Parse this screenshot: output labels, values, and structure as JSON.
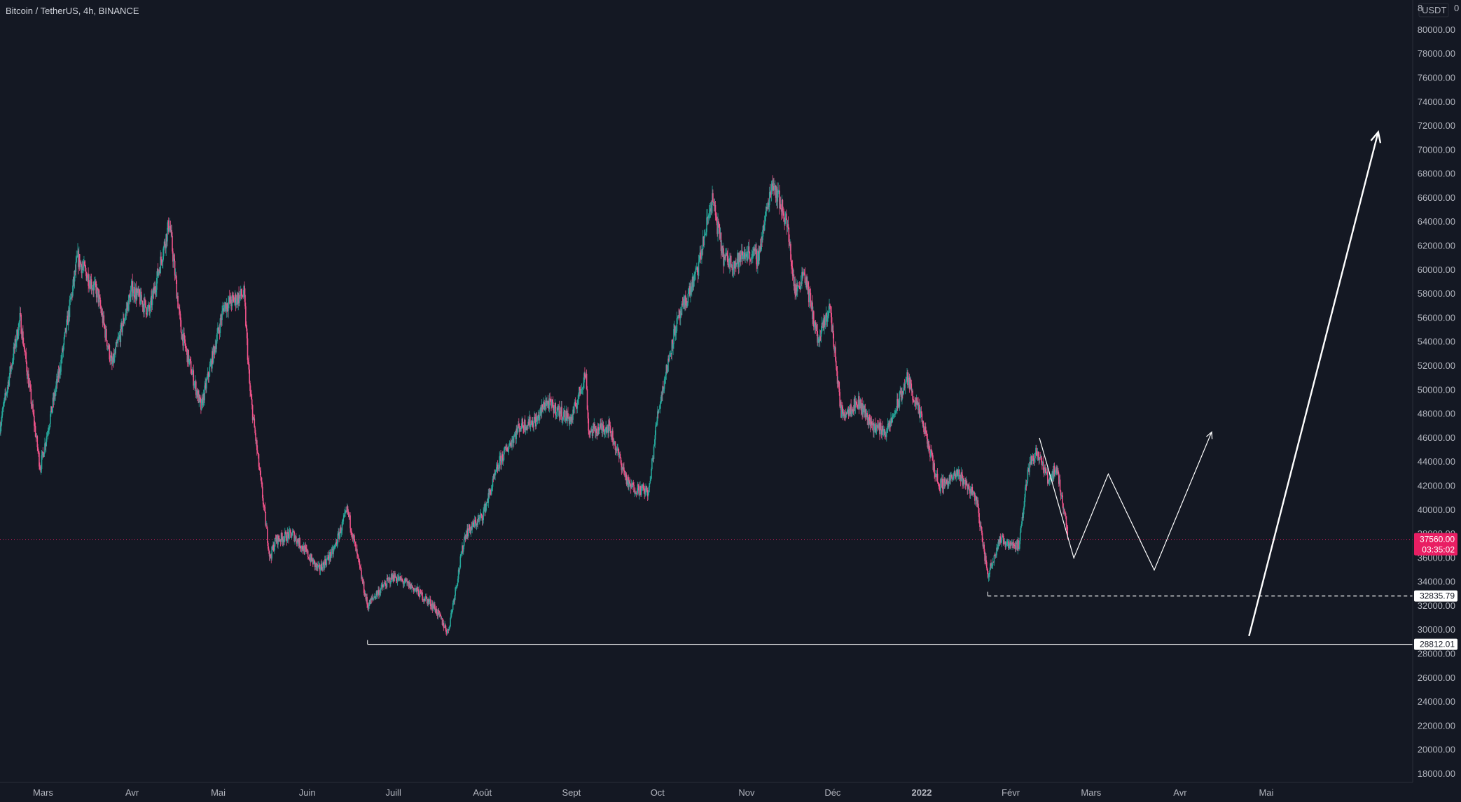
{
  "header": {
    "title": "Bitcoin / TetherUS, 4h, BINANCE"
  },
  "price_axis": {
    "currency": "USDT",
    "corner_digit_left": "8",
    "corner_digit_right": "0"
  },
  "colors": {
    "background": "#141823",
    "up": "#26a69a",
    "down": "#ef5389",
    "axis_text": "#b2b5be",
    "drawing": "#ffffff",
    "current_price_tag": "#e91e63"
  },
  "chart_data": {
    "type": "candlestick",
    "title": "Bitcoin / TetherUS, 4h, BINANCE",
    "ylim": [
      17300,
      82500
    ],
    "y_ticks": [
      18000,
      20000,
      22000,
      24000,
      26000,
      28000,
      30000,
      32000,
      34000,
      36000,
      38000,
      40000,
      42000,
      44000,
      46000,
      48000,
      50000,
      52000,
      54000,
      56000,
      58000,
      60000,
      62000,
      64000,
      66000,
      68000,
      70000,
      72000,
      74000,
      76000,
      78000,
      80000
    ],
    "x_axis": {
      "range": [
        "2021-02-14",
        "2022-06-21"
      ],
      "ticks": [
        {
          "date": "2021-03-01",
          "label": "Mars"
        },
        {
          "date": "2021-04-01",
          "label": "Avr"
        },
        {
          "date": "2021-05-01",
          "label": "Mai"
        },
        {
          "date": "2021-06-01",
          "label": "Juin"
        },
        {
          "date": "2021-07-01",
          "label": "Juill"
        },
        {
          "date": "2021-08-01",
          "label": "Août"
        },
        {
          "date": "2021-09-01",
          "label": "Sept"
        },
        {
          "date": "2021-10-01",
          "label": "Oct"
        },
        {
          "date": "2021-11-01",
          "label": "Nov"
        },
        {
          "date": "2021-12-01",
          "label": "Déc"
        },
        {
          "date": "2022-01-01",
          "label": "2022",
          "bold": true
        },
        {
          "date": "2022-02-01",
          "label": "Févr"
        },
        {
          "date": "2022-03-01",
          "label": "Mars"
        },
        {
          "date": "2022-04-01",
          "label": "Avr"
        },
        {
          "date": "2022-05-01",
          "label": "Mai"
        }
      ]
    },
    "price_path": [
      [
        "2021-02-14",
        47000
      ],
      [
        "2021-02-21",
        56000
      ],
      [
        "2021-02-28",
        43500
      ],
      [
        "2021-03-07",
        52000
      ],
      [
        "2021-03-13",
        61000
      ],
      [
        "2021-03-20",
        58000
      ],
      [
        "2021-03-25",
        52000
      ],
      [
        "2021-04-01",
        58500
      ],
      [
        "2021-04-07",
        56500
      ],
      [
        "2021-04-14",
        64000
      ],
      [
        "2021-04-18",
        55000
      ],
      [
        "2021-04-25",
        48500
      ],
      [
        "2021-05-03",
        57000
      ],
      [
        "2021-05-10",
        58000
      ],
      [
        "2021-05-12",
        50000
      ],
      [
        "2021-05-19",
        36000
      ],
      [
        "2021-05-21",
        37500
      ],
      [
        "2021-05-27",
        38000
      ],
      [
        "2021-06-05",
        35000
      ],
      [
        "2021-06-10",
        36500
      ],
      [
        "2021-06-15",
        40000
      ],
      [
        "2021-06-22",
        32000
      ],
      [
        "2021-06-25",
        33000
      ],
      [
        "2021-07-01",
        34500
      ],
      [
        "2021-07-08",
        33500
      ],
      [
        "2021-07-15",
        32000
      ],
      [
        "2021-07-20",
        29800
      ],
      [
        "2021-07-26",
        38000
      ],
      [
        "2021-08-01",
        39500
      ],
      [
        "2021-08-07",
        44000
      ],
      [
        "2021-08-14",
        47000
      ],
      [
        "2021-08-20",
        47500
      ],
      [
        "2021-08-23",
        49000
      ],
      [
        "2021-09-01",
        47500
      ],
      [
        "2021-09-06",
        51500
      ],
      [
        "2021-09-07",
        46500
      ],
      [
        "2021-09-14",
        47000
      ],
      [
        "2021-09-21",
        42000
      ],
      [
        "2021-09-28",
        41500
      ],
      [
        "2021-10-01",
        48000
      ],
      [
        "2021-10-07",
        55000
      ],
      [
        "2021-10-15",
        60000
      ],
      [
        "2021-10-20",
        66000
      ],
      [
        "2021-10-24",
        61000
      ],
      [
        "2021-10-28",
        60500
      ],
      [
        "2021-11-01",
        61500
      ],
      [
        "2021-11-05",
        61000
      ],
      [
        "2021-11-10",
        67500
      ],
      [
        "2021-11-15",
        64000
      ],
      [
        "2021-11-18",
        58000
      ],
      [
        "2021-11-21",
        60000
      ],
      [
        "2021-11-26",
        54000
      ],
      [
        "2021-11-30",
        57000
      ],
      [
        "2021-12-04",
        48000
      ],
      [
        "2021-12-10",
        49000
      ],
      [
        "2021-12-15",
        47000
      ],
      [
        "2021-12-20",
        46500
      ],
      [
        "2021-12-27",
        51000
      ],
      [
        "2022-01-01",
        47500
      ],
      [
        "2022-01-07",
        42000
      ],
      [
        "2022-01-14",
        43000
      ],
      [
        "2022-01-20",
        41000
      ],
      [
        "2022-01-24",
        34500
      ],
      [
        "2022-01-28",
        37500
      ],
      [
        "2022-02-04",
        37000
      ],
      [
        "2022-02-07",
        43500
      ],
      [
        "2022-02-10",
        45000
      ],
      [
        "2022-02-14",
        42500
      ],
      [
        "2022-02-17",
        43500
      ],
      [
        "2022-02-21",
        38000
      ]
    ],
    "hlines": [
      {
        "value": 32835.79,
        "label": "32835.79",
        "style": "dashed",
        "from": "2022-01-24"
      },
      {
        "value": 28812.01,
        "label": "28812.01",
        "style": "solid",
        "from": "2021-06-22"
      }
    ],
    "current_price": {
      "value": 37560.0,
      "label": "37560.00",
      "countdown": "03:35:02"
    },
    "projection_zigzag": [
      [
        "2022-02-11",
        46000
      ],
      [
        "2022-02-23",
        36000
      ],
      [
        "2022-03-07",
        43000
      ],
      [
        "2022-03-23",
        35000
      ],
      [
        "2022-04-12",
        46500
      ]
    ],
    "projection_arrow": [
      [
        "2022-04-25",
        29500
      ],
      [
        "2022-06-09",
        71500
      ]
    ]
  }
}
